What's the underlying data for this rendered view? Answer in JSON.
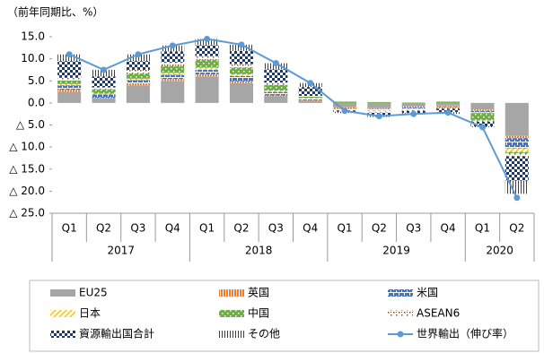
{
  "chart_data": {
    "type": "bar",
    "stacked": true,
    "y_label": "（前年同期比、%）",
    "groups": [
      {
        "label": "2017",
        "categories": [
          "Q1",
          "Q2",
          "Q3",
          "Q4"
        ]
      },
      {
        "label": "2018",
        "categories": [
          "Q1",
          "Q2",
          "Q3",
          "Q4"
        ]
      },
      {
        "label": "2019",
        "categories": [
          "Q1",
          "Q2",
          "Q3",
          "Q4"
        ]
      },
      {
        "label": "2020",
        "categories": [
          "Q1",
          "Q2"
        ]
      }
    ],
    "ylim": [
      -25,
      15
    ],
    "yticks": [
      {
        "value": 15,
        "label": "15.0"
      },
      {
        "value": 10,
        "label": "10.0"
      },
      {
        "value": 5,
        "label": "5.0"
      },
      {
        "value": 0,
        "label": "0.0"
      },
      {
        "value": -5,
        "label": "△ 5.0"
      },
      {
        "value": -10,
        "label": "△ 10.0"
      },
      {
        "value": -15,
        "label": "△ 15.0"
      },
      {
        "value": -20,
        "label": "△ 20.0"
      },
      {
        "value": -25,
        "label": "△ 25.0"
      }
    ],
    "series": [
      {
        "name": "EU25",
        "color": "#a6a6a6",
        "pattern": "solid",
        "values": [
          2.5,
          1.0,
          4.0,
          5.0,
          6.0,
          4.5,
          1.5,
          0.5,
          -1.0,
          -1.2,
          -0.8,
          -0.6,
          -1.5,
          -7.5
        ]
      },
      {
        "name": "英国",
        "color": "#ed7d31",
        "pattern": "vstripes",
        "values": [
          0.5,
          0.2,
          0.4,
          0.4,
          0.5,
          0.4,
          0.2,
          0.1,
          -0.3,
          -0.2,
          -0.3,
          -0.2,
          -0.3,
          -0.5
        ]
      },
      {
        "name": "米国",
        "color": "#4472c4",
        "pattern": "brick",
        "values": [
          1.0,
          0.7,
          0.8,
          1.0,
          1.0,
          1.2,
          0.8,
          0.4,
          -0.1,
          -0.3,
          -0.2,
          -0.2,
          -0.3,
          -2.3
        ]
      },
      {
        "name": "日本",
        "color": "#ffc000",
        "pattern": "diag",
        "values": [
          0.3,
          0.2,
          0.3,
          0.4,
          0.5,
          0.4,
          0.3,
          0.1,
          -0.1,
          -0.2,
          -0.2,
          -0.1,
          -0.2,
          -0.8
        ]
      },
      {
        "name": "中国",
        "color": "#70ad47",
        "pattern": "dots",
        "values": [
          0.8,
          1.0,
          1.2,
          1.6,
          1.8,
          1.5,
          1.3,
          0.3,
          0.3,
          0.2,
          0.1,
          0.3,
          -1.7,
          -0.3
        ]
      },
      {
        "name": "ASEAN6",
        "color": "#9e480e",
        "pattern": "checker",
        "values": [
          0.6,
          0.4,
          0.8,
          0.8,
          0.8,
          0.8,
          0.5,
          0.2,
          -0.2,
          -0.3,
          -0.3,
          -0.2,
          -0.3,
          -0.7
        ]
      },
      {
        "name": "資源輸出国合計",
        "color": "#1f3864",
        "pattern": "zigzag",
        "values": [
          3.8,
          2.5,
          2.0,
          2.5,
          2.5,
          3.0,
          3.0,
          2.0,
          -0.3,
          -0.5,
          -0.5,
          -0.8,
          -1.0,
          -5.5
        ]
      },
      {
        "name": "その他",
        "color": "#404040",
        "pattern": "vlines",
        "values": [
          1.5,
          1.5,
          1.5,
          1.3,
          1.4,
          1.4,
          1.4,
          0.9,
          -0.3,
          -0.5,
          -0.3,
          -0.4,
          -0.2,
          -3.0
        ]
      },
      {
        "name": "世界輸出（伸び率）",
        "color": "#5b9bd5",
        "type": "line",
        "values": [
          11.0,
          7.5,
          11.0,
          13.0,
          14.5,
          13.2,
          9.0,
          4.5,
          -1.8,
          -3.0,
          -2.5,
          -2.2,
          -5.5,
          -21.5
        ]
      }
    ]
  }
}
